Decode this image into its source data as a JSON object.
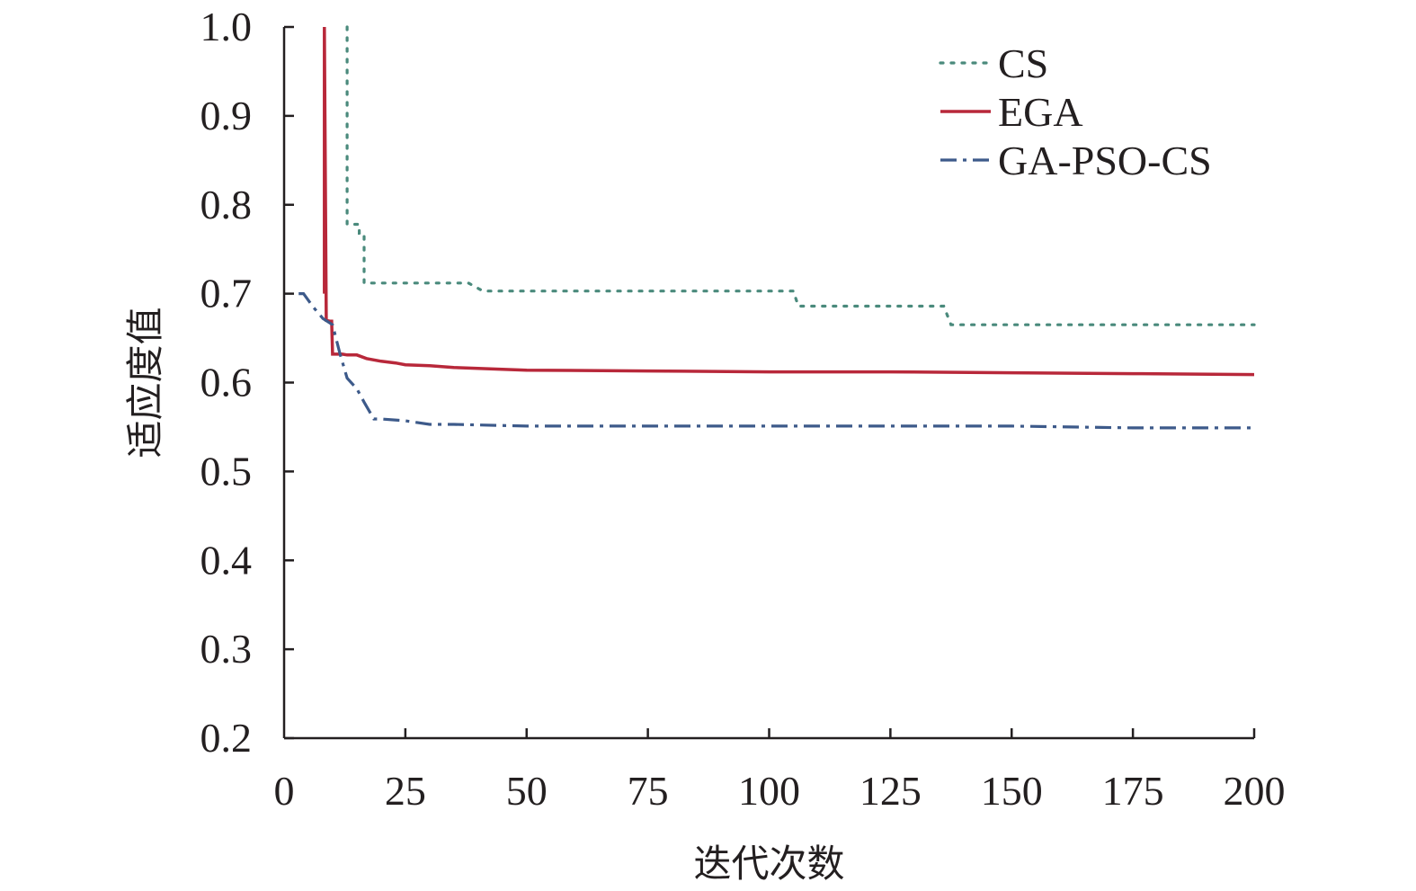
{
  "chart_data": {
    "type": "line",
    "title": "",
    "xlabel": "迭代次数",
    "ylabel": "适应度值",
    "xlim": [
      0,
      200
    ],
    "ylim": [
      0.2,
      1.0
    ],
    "x_ticks": [
      0,
      25,
      50,
      75,
      100,
      125,
      150,
      175,
      200
    ],
    "x_tick_labels": [
      "0",
      "25",
      "50",
      "75",
      "100",
      "125",
      "150",
      "175",
      "200"
    ],
    "y_ticks": [
      0.2,
      0.3,
      0.4,
      0.5,
      0.6,
      0.7,
      0.8,
      0.9,
      1.0
    ],
    "y_tick_labels": [
      "0.2",
      "0.3",
      "0.4",
      "0.5",
      "0.6",
      "0.7",
      "0.8",
      "0.9",
      "1.0"
    ],
    "grid": false,
    "legend_position": "top-right",
    "series": [
      {
        "name": "CS",
        "color": "#4a8a7c",
        "dash": "dotted",
        "x": [
          13,
          13,
          15.5,
          15.5,
          16.5,
          16.5,
          38,
          41,
          105,
          106,
          136,
          137.5,
          200
        ],
        "y": [
          1.0,
          0.778,
          0.778,
          0.768,
          0.768,
          0.712,
          0.712,
          0.703,
          0.703,
          0.686,
          0.686,
          0.665,
          0.665
        ]
      },
      {
        "name": "EGA",
        "color": "#b8283a",
        "dash": "solid",
        "x": [
          8.3,
          8.3,
          8.7,
          9.5,
          9.8,
          10,
          12,
          13,
          15,
          17,
          20,
          23,
          25,
          30,
          35,
          40,
          50,
          75,
          100,
          125,
          150,
          175,
          200
        ],
        "y": [
          0.7,
          1.0,
          0.67,
          0.669,
          0.669,
          0.632,
          0.632,
          0.631,
          0.631,
          0.627,
          0.624,
          0.622,
          0.62,
          0.619,
          0.617,
          0.616,
          0.614,
          0.613,
          0.612,
          0.612,
          0.611,
          0.61,
          0.609
        ]
      },
      {
        "name": "GA-PSO-CS",
        "color": "#3d5a8a",
        "dash": "dashdot",
        "x": [
          3,
          4,
          6,
          8,
          10,
          11.5,
          13,
          15,
          16.5,
          18.5,
          20,
          25,
          30,
          35,
          50,
          75,
          100,
          125,
          150,
          175,
          200
        ],
        "y": [
          0.7,
          0.7,
          0.685,
          0.672,
          0.665,
          0.633,
          0.605,
          0.593,
          0.578,
          0.559,
          0.559,
          0.557,
          0.553,
          0.553,
          0.551,
          0.551,
          0.551,
          0.551,
          0.551,
          0.549,
          0.549
        ]
      }
    ]
  }
}
